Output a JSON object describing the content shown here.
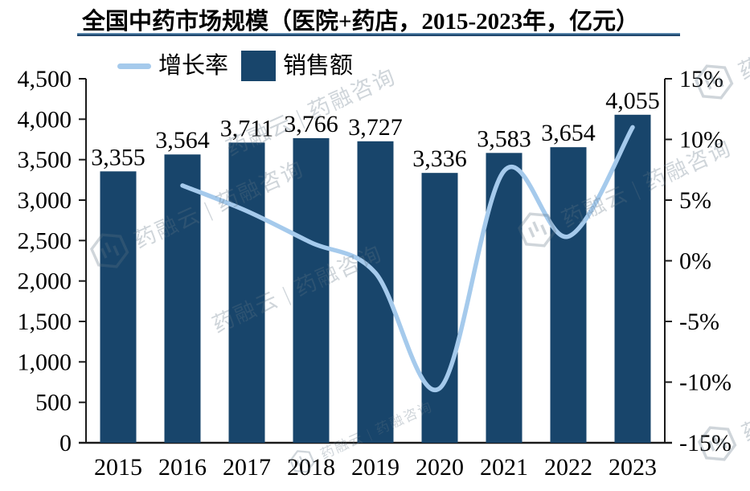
{
  "title": {
    "text": "全国中药市场规模（医院+药店，2015-2023年，亿元）"
  },
  "legend": {
    "growth_label": "增长率",
    "sales_label": "销售额"
  },
  "watermark": {
    "text": "药融云 | 药融咨询"
  },
  "colors": {
    "bar": "#18456b",
    "line": "#a5caec",
    "axis": "#1a1a1a",
    "label_text": "#000000",
    "title_rule": "#17375e"
  },
  "chart_data": {
    "type": "bar",
    "title": "全国中药市场规模（医院+药店，2015-2023年，亿元）",
    "categories": [
      "2015",
      "2016",
      "2017",
      "2018",
      "2019",
      "2020",
      "2021",
      "2022",
      "2023"
    ],
    "series": [
      {
        "name": "销售额",
        "type": "bar",
        "axis": "left",
        "color": "#18456b",
        "values": [
          3355,
          3564,
          3711,
          3766,
          3727,
          3336,
          3583,
          3654,
          4055
        ],
        "labels": [
          "3,355",
          "3,564",
          "3,711",
          "3,766",
          "3,727",
          "3,336",
          "3,583",
          "3,654",
          "4,055"
        ]
      },
      {
        "name": "增长率",
        "type": "line",
        "axis": "right",
        "color": "#a5caec",
        "values": [
          null,
          6.2,
          4.1,
          1.5,
          -1.0,
          -10.5,
          7.4,
          2.0,
          11.0
        ]
      }
    ],
    "left_axis": {
      "min": 0,
      "max": 4500,
      "step": 500,
      "ticks": [
        "0",
        "500",
        "1,000",
        "1,500",
        "2,000",
        "2,500",
        "3,000",
        "3,500",
        "4,000",
        "4,500"
      ]
    },
    "right_axis": {
      "min": -15,
      "max": 15,
      "step": 5,
      "ticks": [
        "-15%",
        "-10%",
        "-5%",
        "0%",
        "5%",
        "10%",
        "15%"
      ]
    },
    "grid": false,
    "legend_position": "top-left"
  }
}
